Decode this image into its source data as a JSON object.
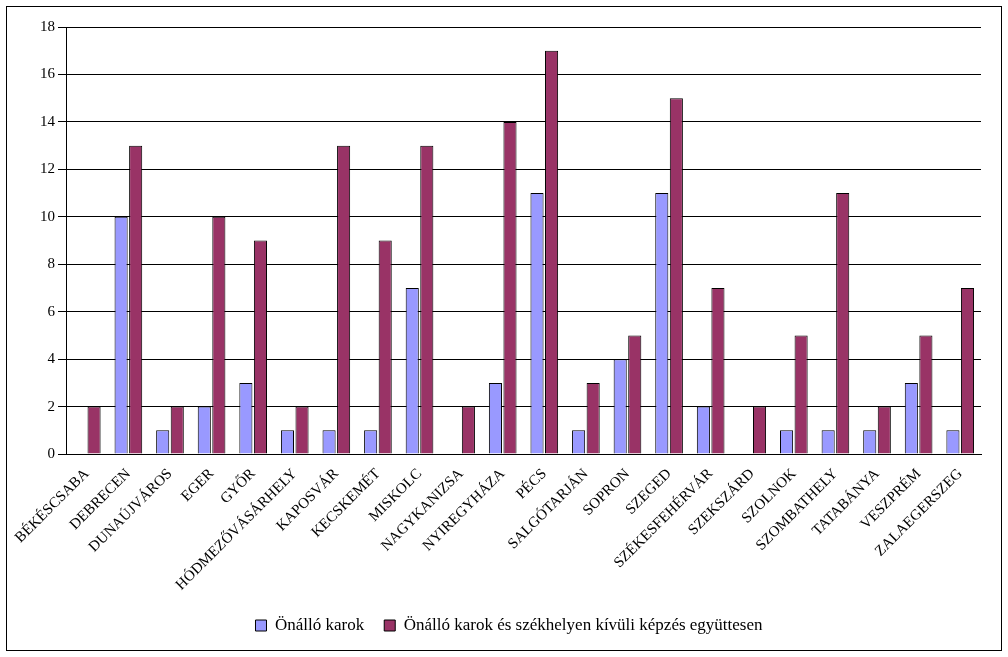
{
  "chart_data": {
    "type": "bar",
    "categories": [
      "BÉKÉSCSABA",
      "DEBRECEN",
      "DUNAÚJVÁROS",
      "EGER",
      "GYŐR",
      "HÓDMEZŐVÁSÁRHELY",
      "KAPOSVÁR",
      "KECSKEMÉT",
      "MISKOLC",
      "NAGYKANIZSA",
      "NYIREGYHÁZA",
      "PÉCS",
      "SALGÓTARJÁN",
      "SOPRON",
      "SZEGED",
      "SZÉKESFEHÉRVÁR",
      "SZEKSZÁRD",
      "SZOLNOK",
      "SZOMBATHELY",
      "TATABÁNYA",
      "VESZPRÉM",
      "ZALAEGERSZEG"
    ],
    "series": [
      {
        "name": "Önálló karok",
        "color": "#9999ff",
        "values": [
          0,
          10,
          1,
          2,
          3,
          1,
          1,
          1,
          7,
          0,
          3,
          11,
          1,
          4,
          11,
          2,
          0,
          1,
          1,
          1,
          3,
          1
        ]
      },
      {
        "name": "Önálló karok és székhelyen kívüli képzés együttesen",
        "color": "#993366",
        "values": [
          2,
          13,
          2,
          10,
          9,
          2,
          13,
          9,
          13,
          2,
          14,
          17,
          3,
          5,
          15,
          7,
          2,
          5,
          11,
          2,
          5,
          7
        ]
      }
    ],
    "ylim": [
      0,
      18
    ],
    "yticks": [
      0,
      2,
      4,
      6,
      8,
      10,
      12,
      14,
      16,
      18
    ],
    "grid": "y",
    "legend": "bottom"
  }
}
